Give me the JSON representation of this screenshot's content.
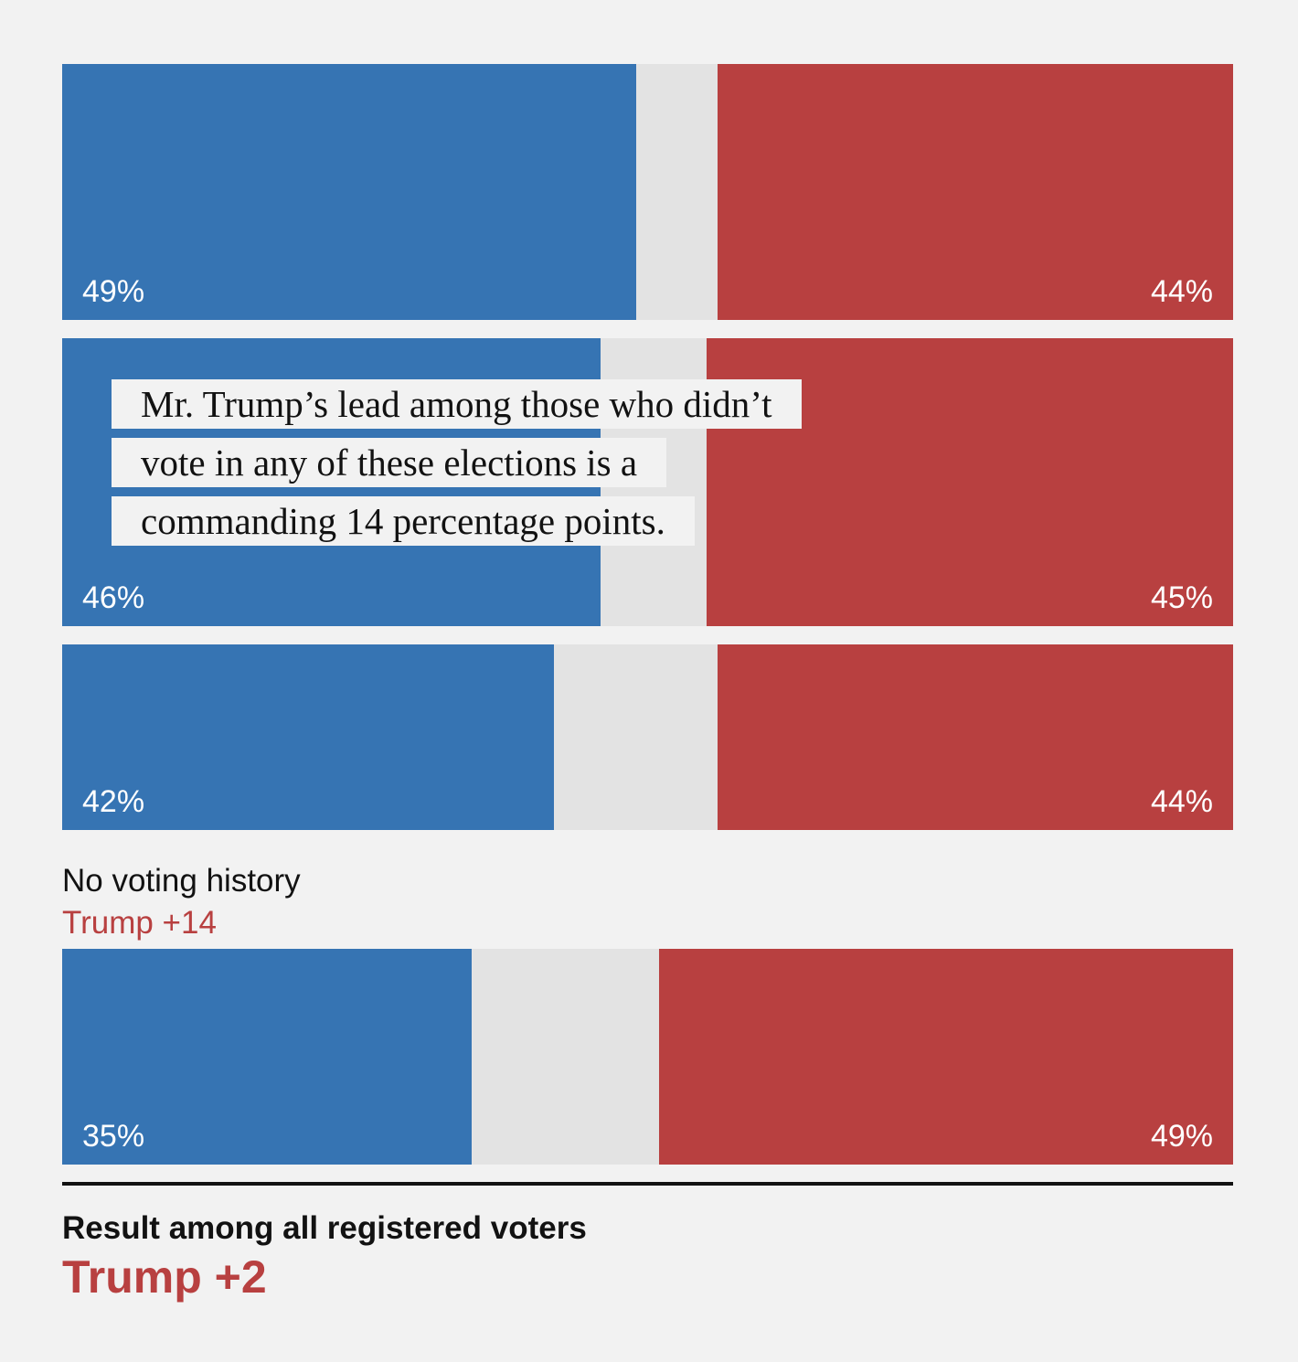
{
  "colors": {
    "dem": "#3674b3",
    "undecided": "#e3e3e3",
    "rep": "#b84040",
    "rep_text": "#b84040",
    "background": "#f2f2f2"
  },
  "chart_data": {
    "type": "bar",
    "orientation": "horizontal",
    "stacked": true,
    "xlim": [
      0,
      100
    ],
    "rows": [
      {
        "label": "",
        "margin": "",
        "dem": 49,
        "rep": 44,
        "dem_label": "49%",
        "rep_label": "44%"
      },
      {
        "label": "",
        "margin": "",
        "dem": 46,
        "rep": 45,
        "dem_label": "46%",
        "rep_label": "45%"
      },
      {
        "label": "",
        "margin": "",
        "dem": 42,
        "rep": 44,
        "dem_label": "42%",
        "rep_label": "44%"
      },
      {
        "label": "No voting history",
        "margin": "Trump +14",
        "dem": 35,
        "rep": 49,
        "dem_label": "35%",
        "rep_label": "49%"
      }
    ],
    "annotation": {
      "lines": [
        "Mr. Trump’s lead among those who didn’t",
        "vote in any of these elections is a",
        "commanding 14 percentage points."
      ]
    },
    "total": {
      "label": "Result among all registered voters",
      "margin": "Trump +2"
    }
  }
}
